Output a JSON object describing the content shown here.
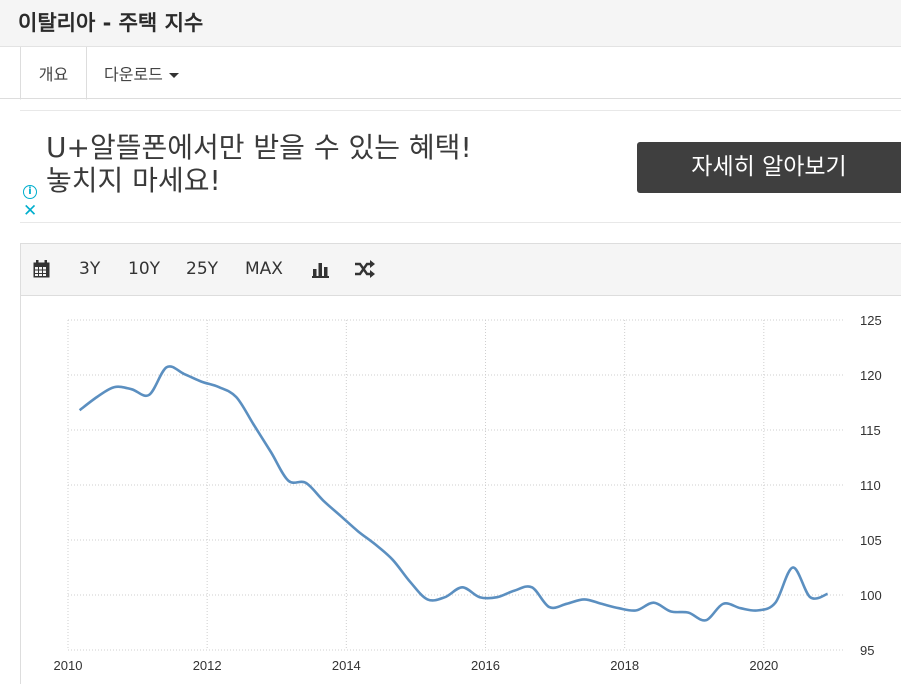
{
  "page": {
    "title": "이탈리아 - 주택 지수"
  },
  "tabs": [
    {
      "label": "개요"
    },
    {
      "label": "다운로드"
    }
  ],
  "ad": {
    "line1": "U+알뜰폰에서만 받을 수 있는 혜택!",
    "line2": "놓치지 마세요!",
    "button_label": "자세히 알아보기",
    "info_icon": "info-icon",
    "close_icon": "close-icon",
    "accent_color": "#00aecd"
  },
  "toolbar": {
    "calendar_icon": "calendar-icon",
    "ranges": [
      "3Y",
      "10Y",
      "25Y",
      "MAX"
    ],
    "bar_chart_icon": "bar-chart-icon",
    "shuffle_icon": "shuffle-icon"
  },
  "chart_data": {
    "type": "line",
    "title": "",
    "xlabel": "",
    "ylabel": "",
    "x_ticks": [
      "2010",
      "2012",
      "2014",
      "2016",
      "2018",
      "2020"
    ],
    "y_ticks": [
      "95",
      "100",
      "105",
      "110",
      "115",
      "120",
      "125"
    ],
    "ylim": [
      95,
      125
    ],
    "xlim": [
      "2010-01",
      "2021-03"
    ],
    "y_axis_position": "right",
    "grid": true,
    "line_color": "#5b8fc0",
    "series": [
      {
        "x": [
          "2010-03",
          "2010-06",
          "2010-09",
          "2010-12",
          "2011-03",
          "2011-06",
          "2011-09",
          "2011-12",
          "2012-03",
          "2012-06",
          "2012-09",
          "2012-12",
          "2013-03",
          "2013-06",
          "2013-09",
          "2013-12",
          "2014-03",
          "2014-06",
          "2014-09",
          "2014-12",
          "2015-03",
          "2015-06",
          "2015-09",
          "2015-12",
          "2016-03",
          "2016-06",
          "2016-09",
          "2016-12",
          "2017-03",
          "2017-06",
          "2017-09",
          "2017-12",
          "2018-03",
          "2018-06",
          "2018-09",
          "2018-12",
          "2019-03",
          "2019-06",
          "2019-09",
          "2019-12",
          "2020-03",
          "2020-06",
          "2020-09",
          "2020-12"
        ],
        "values": [
          116.8,
          118.0,
          118.9,
          118.7,
          118.2,
          120.7,
          120.1,
          119.4,
          118.9,
          118.0,
          115.5,
          113.0,
          110.4,
          110.2,
          108.6,
          107.2,
          105.8,
          104.6,
          103.2,
          101.2,
          99.6,
          99.8,
          100.7,
          99.8,
          99.8,
          100.4,
          100.7,
          98.9,
          99.2,
          99.6,
          99.2,
          98.8,
          98.6,
          99.3,
          98.5,
          98.4,
          97.7,
          99.2,
          98.8,
          98.6,
          99.3,
          102.5,
          99.8,
          100.1
        ]
      }
    ]
  }
}
